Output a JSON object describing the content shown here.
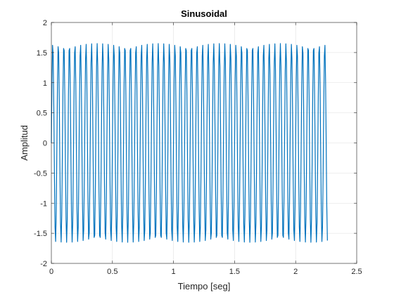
{
  "chart_data": {
    "type": "line",
    "title": "Sinusoidal",
    "xlabel": "Tiempo [seg]",
    "ylabel": "Amplitud",
    "xlim": [
      0,
      2.5
    ],
    "ylim": [
      -2,
      2
    ],
    "xticks": [
      0,
      0.5,
      1,
      1.5,
      2,
      2.5
    ],
    "xtick_labels": [
      "0",
      "0.5",
      "1",
      "1.5",
      "2",
      "2.5"
    ],
    "yticks": [
      -2,
      -1.5,
      -1,
      -0.5,
      0,
      0.5,
      1,
      1.5,
      2
    ],
    "ytick_labels": [
      "-2",
      "-1.5",
      "-1",
      "-0.5",
      "0",
      "0.5",
      "1",
      "1.5",
      "2"
    ],
    "grid": true,
    "legend": "none",
    "series": [
      {
        "color": "#0072BD",
        "function": "sine",
        "amplitude": 1.65,
        "frequency_hz": 22,
        "x_start": 0,
        "x_end": 2.26,
        "sample_step": 0.005
      }
    ]
  }
}
